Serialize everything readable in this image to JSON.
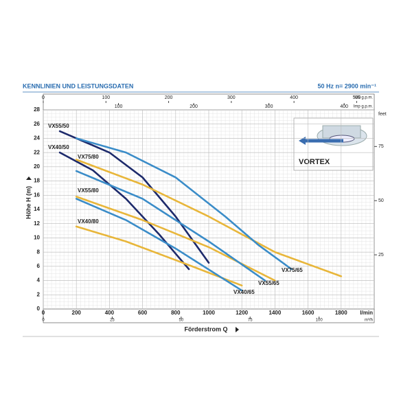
{
  "chart_data": {
    "type": "line",
    "title": "KENNLINIEN UND LEISTUNGSDATEN",
    "subtitle": "50 Hz  n= 2900 min⁻¹",
    "x_label": "Förderstrom Q",
    "y_label": "Höhe H (m)",
    "x_unit": "l/min",
    "xlim": [
      0,
      2000
    ],
    "xticks": [
      0,
      200,
      400,
      600,
      800,
      1000,
      1200,
      1400,
      1600,
      1800
    ],
    "ylim": [
      0,
      28
    ],
    "yticks": [
      0,
      2,
      4,
      6,
      8,
      10,
      12,
      14,
      16,
      18,
      20,
      22,
      24,
      26,
      28
    ],
    "x2_unit": "m³/h",
    "x2lim": [
      0,
      120
    ],
    "x2ticks": [
      0,
      25,
      50,
      75,
      100
    ],
    "x3_unit": "US g.p.m.",
    "x3lim": [
      0,
      528
    ],
    "x3ticks": [
      0,
      100,
      200,
      300,
      400,
      500
    ],
    "x4_unit": "Imp g.p.m.",
    "x4lim": [
      0,
      440
    ],
    "x4ticks": [
      100,
      200,
      300,
      400
    ],
    "y2_unit": "feet",
    "y2lim": [
      0,
      91.9
    ],
    "y2ticks": [
      25,
      50,
      75
    ],
    "grid": true,
    "inset": {
      "text": "VORTEX"
    },
    "series": [
      {
        "name": "VX55/50",
        "color": "#1d2a6b",
        "x": [
          100,
          400,
          600,
          800,
          1000
        ],
        "values": [
          25,
          22,
          18.5,
          13,
          6.5
        ]
      },
      {
        "name": "VX40/50",
        "color": "#1d2a6b",
        "x": [
          100,
          300,
          500,
          700,
          880
        ],
        "values": [
          22,
          19.5,
          15.5,
          10.5,
          5.6
        ]
      },
      {
        "name": "VX75/80",
        "color": "#e8b63a",
        "x": [
          200,
          600,
          1000,
          1400,
          1800
        ],
        "values": [
          21,
          17.5,
          13,
          8,
          4.6
        ]
      },
      {
        "name": "VX55/80",
        "color": "#e8b63a",
        "x": [
          200,
          600,
          1000,
          1400
        ],
        "values": [
          15.8,
          12.5,
          8.7,
          4
        ]
      },
      {
        "name": "VX40/80",
        "color": "#e8b63a",
        "x": [
          200,
          500,
          900,
          1200
        ],
        "values": [
          11.6,
          9.5,
          6,
          3.3
        ]
      },
      {
        "name": "VX75/65",
        "color": "#3a8cc8",
        "x": [
          200,
          500,
          800,
          1100,
          1300,
          1500
        ],
        "values": [
          24,
          22,
          18.5,
          13,
          9,
          5.6
        ]
      },
      {
        "name": "VX55/65",
        "color": "#3a8cc8",
        "x": [
          200,
          600,
          1000,
          1340
        ],
        "values": [
          19.4,
          15.5,
          9.5,
          4
        ]
      },
      {
        "name": "VX40/65",
        "color": "#3a8cc8",
        "x": [
          200,
          500,
          800,
          1200
        ],
        "values": [
          15.5,
          12.5,
          8.5,
          2.6
        ]
      }
    ]
  }
}
